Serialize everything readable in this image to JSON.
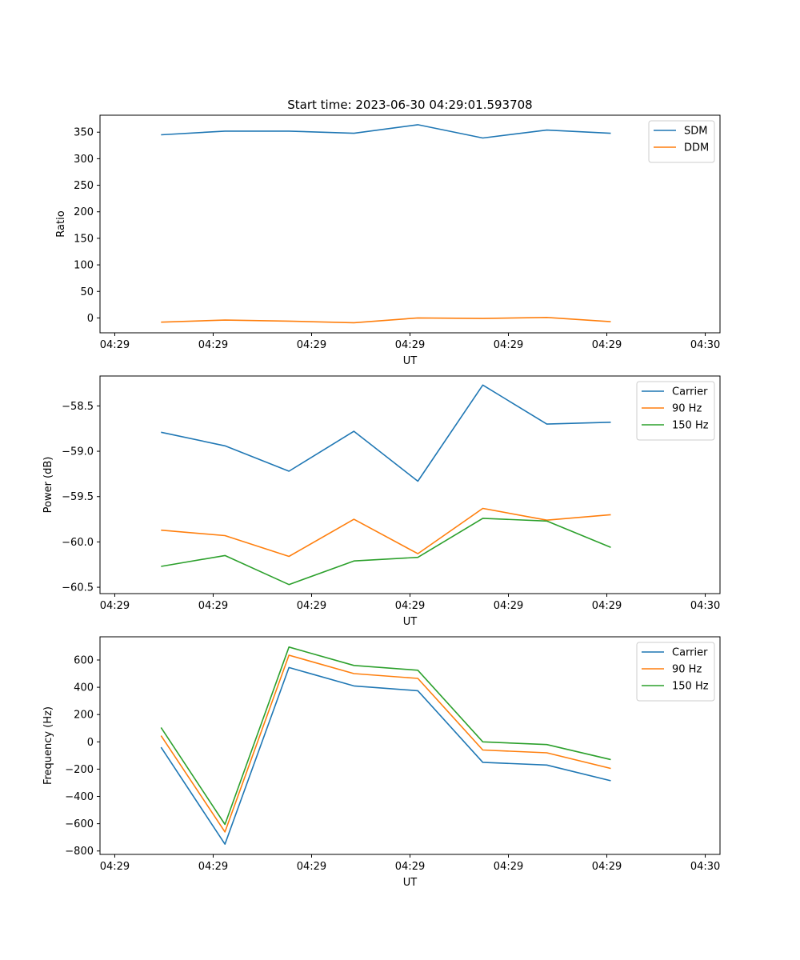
{
  "chart_data": [
    {
      "type": "line",
      "title": "Start time: 2023-06-30 04:29:01.593708",
      "xlabel": "UT",
      "ylabel": "Ratio",
      "x_tick_labels": [
        "04:29",
        "04:29",
        "04:29",
        "04:29",
        "04:29",
        "04:29",
        "04:30"
      ],
      "x_tick_values": [
        0,
        10,
        20,
        30,
        40,
        50,
        60
      ],
      "xlim": [
        -1.5,
        61.5
      ],
      "ylim": [
        -28,
        382
      ],
      "y_ticks": [
        0,
        50,
        100,
        150,
        200,
        250,
        300,
        350
      ],
      "y_tick_labels": [
        "0",
        "50",
        "100",
        "150",
        "200",
        "250",
        "300",
        "350"
      ],
      "x": [
        4.7,
        11.2,
        17.7,
        24.3,
        30.8,
        37.4,
        43.9,
        50.4
      ],
      "series": [
        {
          "name": "SDM",
          "color": "#1f77b4",
          "values": [
            345,
            352,
            352,
            348,
            364,
            339,
            354,
            348
          ]
        },
        {
          "name": "DDM",
          "color": "#ff7f0e",
          "values": [
            -8,
            -4,
            -6,
            -9,
            0,
            -1,
            1,
            -7
          ]
        }
      ],
      "legend": "top-right",
      "grid": false
    },
    {
      "type": "line",
      "title": "",
      "xlabel": "UT",
      "ylabel": "Power (dB)",
      "x_tick_labels": [
        "04:29",
        "04:29",
        "04:29",
        "04:29",
        "04:29",
        "04:29",
        "04:30"
      ],
      "x_tick_values": [
        0,
        10,
        20,
        30,
        40,
        50,
        60
      ],
      "xlim": [
        -1.5,
        61.5
      ],
      "ylim": [
        -60.57,
        -58.17
      ],
      "y_ticks": [
        -60.5,
        -60.0,
        -59.5,
        -59.0,
        -58.5
      ],
      "y_tick_labels": [
        "−60.5",
        "−60.0",
        "−59.5",
        "−59.0",
        "−58.5"
      ],
      "x": [
        4.7,
        11.2,
        17.7,
        24.3,
        30.8,
        37.4,
        43.9,
        50.4
      ],
      "series": [
        {
          "name": "Carrier",
          "color": "#1f77b4",
          "values": [
            -58.79,
            -58.94,
            -59.22,
            -58.78,
            -59.33,
            -58.27,
            -58.7,
            -58.68
          ]
        },
        {
          "name": "90 Hz",
          "color": "#ff7f0e",
          "values": [
            -59.87,
            -59.93,
            -60.16,
            -59.75,
            -60.13,
            -59.63,
            -59.76,
            -59.7
          ]
        },
        {
          "name": "150 Hz",
          "color": "#2ca02c",
          "values": [
            -60.27,
            -60.15,
            -60.47,
            -60.21,
            -60.17,
            -59.74,
            -59.77,
            -60.06
          ]
        }
      ],
      "legend": "top-right",
      "grid": false
    },
    {
      "type": "line",
      "title": "",
      "xlabel": "UT",
      "ylabel": "Frequency (Hz)",
      "x_tick_labels": [
        "04:29",
        "04:29",
        "04:29",
        "04:29",
        "04:29",
        "04:29",
        "04:30"
      ],
      "x_tick_values": [
        0,
        10,
        20,
        30,
        40,
        50,
        60
      ],
      "xlim": [
        -1.5,
        61.5
      ],
      "ylim": [
        -825,
        770
      ],
      "y_ticks": [
        -800,
        -600,
        -400,
        -200,
        0,
        200,
        400,
        600
      ],
      "y_tick_labels": [
        "−800",
        "−600",
        "−400",
        "−200",
        "0",
        "200",
        "400",
        "600"
      ],
      "x": [
        4.7,
        11.2,
        17.7,
        24.3,
        30.8,
        37.4,
        43.9,
        50.4
      ],
      "series": [
        {
          "name": "Carrier",
          "color": "#1f77b4",
          "values": [
            -40,
            -750,
            545,
            410,
            375,
            -150,
            -170,
            -285
          ]
        },
        {
          "name": "90 Hz",
          "color": "#ff7f0e",
          "values": [
            45,
            -660,
            635,
            500,
            465,
            -60,
            -80,
            -195
          ]
        },
        {
          "name": "150 Hz",
          "color": "#2ca02c",
          "values": [
            105,
            -605,
            695,
            560,
            525,
            0,
            -20,
            -130
          ]
        }
      ],
      "legend": "top-right",
      "grid": false
    }
  ]
}
